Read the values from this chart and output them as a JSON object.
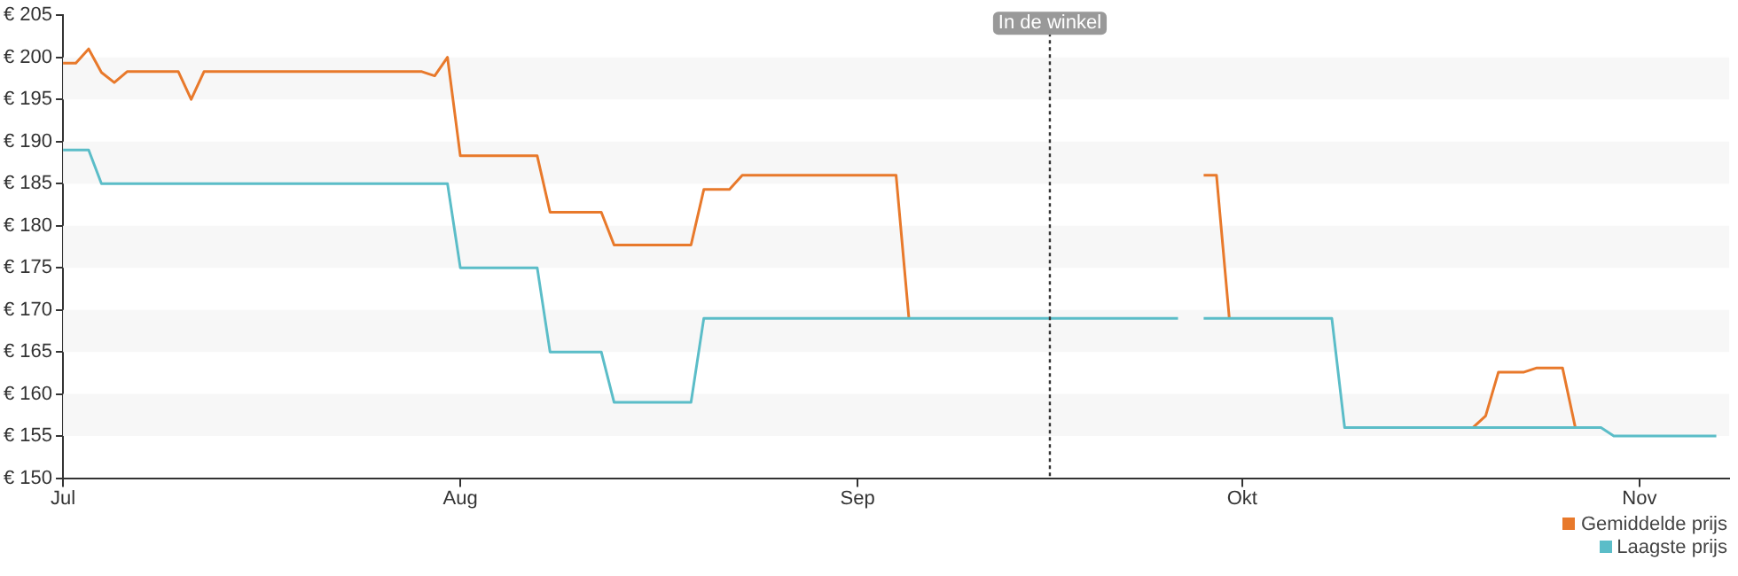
{
  "chart_data": {
    "type": "line",
    "series": [
      {
        "name": "Gemiddelde prijs",
        "color": "#e8792b",
        "x": [
          "--07-01",
          "--07-02",
          "--07-03",
          "--07-04",
          "--07-05",
          "--07-06",
          "--07-10",
          "--07-11",
          "--07-12",
          "--07-29",
          "--07-30",
          "--07-31",
          "--08-01",
          "--08-07",
          "--08-08",
          "--08-12",
          "--08-13",
          "--08-19",
          "--08-20",
          "--08-22",
          "--08-23",
          "--09-04",
          "--09-05",
          "--09-26",
          "--09-27",
          "--09-28",
          "--09-29",
          "--09-30",
          "--10-08",
          "--10-09",
          "--10-19",
          "--10-20",
          "--10-21",
          "--10-23",
          "--10-24",
          "--10-26",
          "--10-27"
        ],
        "values": [
          199.3,
          199.3,
          201,
          198.2,
          197,
          198.3,
          198.3,
          195,
          198.3,
          198.3,
          197.8,
          200,
          188.3,
          188.3,
          181.6,
          181.6,
          177.7,
          177.7,
          184.3,
          184.3,
          186,
          186,
          169,
          null,
          null,
          186,
          186,
          169,
          null,
          null,
          156,
          157.4,
          162.6,
          162.6,
          163.1,
          163.1,
          156
        ]
      },
      {
        "name": "Laagste prijs",
        "color": "#5bbdc8",
        "x": [
          "--07-01",
          "--07-03",
          "--07-04",
          "--07-31",
          "--08-01",
          "--08-07",
          "--08-08",
          "--08-12",
          "--08-13",
          "--08-19",
          "--08-20",
          "--09-26",
          "--09-27",
          "--09-28",
          "--10-08",
          "--10-09",
          "--10-29",
          "--10-30",
          "--11-07"
        ],
        "values": [
          189,
          189,
          185,
          185,
          175,
          175,
          165,
          165,
          159,
          159,
          169,
          169,
          null,
          169,
          169,
          156,
          156,
          155,
          155
        ]
      }
    ],
    "xlim": [
      "--07-01",
      "--11-08"
    ],
    "xticks": [
      {
        "value": "--07-01",
        "label": "Jul"
      },
      {
        "value": "--08-01",
        "label": "Aug"
      },
      {
        "value": "--09-01",
        "label": "Sep"
      },
      {
        "value": "--10-01",
        "label": "Okt"
      },
      {
        "value": "--11-01",
        "label": "Nov"
      }
    ],
    "ylim": [
      150,
      205
    ],
    "yticks": [
      {
        "value": 150,
        "label": "€ 150"
      },
      {
        "value": 155,
        "label": "€ 155"
      },
      {
        "value": 160,
        "label": "€ 160"
      },
      {
        "value": 165,
        "label": "€ 165"
      },
      {
        "value": 170,
        "label": "€ 170"
      },
      {
        "value": 175,
        "label": "€ 175"
      },
      {
        "value": 180,
        "label": "€ 180"
      },
      {
        "value": 185,
        "label": "€ 185"
      },
      {
        "value": 190,
        "label": "€ 190"
      },
      {
        "value": 195,
        "label": "€ 195"
      },
      {
        "value": 200,
        "label": "€ 200"
      },
      {
        "value": 205,
        "label": "€ 205"
      }
    ],
    "ref_lines": [
      {
        "axis": "x",
        "value": "--09-16",
        "label": "In de winkel",
        "line_style": "dotted",
        "color": "#333333"
      }
    ],
    "bands": [
      {
        "axis": "y",
        "from": 155,
        "to": 160,
        "color": "#f7f7f7"
      },
      {
        "axis": "y",
        "from": 165,
        "to": 170,
        "color": "#f7f7f7"
      },
      {
        "axis": "y",
        "from": 175,
        "to": 180,
        "color": "#f7f7f7"
      },
      {
        "axis": "y",
        "from": 185,
        "to": 190,
        "color": "#f7f7f7"
      },
      {
        "axis": "y",
        "from": 195,
        "to": 200,
        "color": "#f7f7f7"
      }
    ],
    "legend": "bottom right",
    "marker": "none",
    "line_style": "solid"
  }
}
